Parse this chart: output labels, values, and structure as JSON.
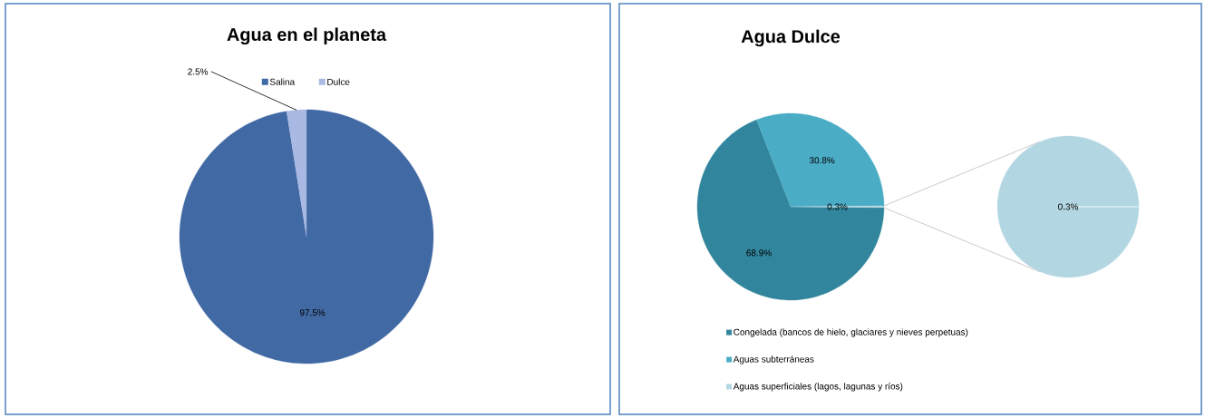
{
  "chart_data": [
    {
      "type": "pie",
      "title": "Agua en el planeta",
      "categories": [
        "Salina",
        "Dulce"
      ],
      "values": [
        97.5,
        2.5
      ],
      "colors": [
        "#4169a4",
        "#a9b9e3"
      ],
      "value_labels": [
        "97.5%",
        "2.5%"
      ],
      "legend": "top"
    },
    {
      "type": "pie",
      "title": "Agua Dulce",
      "categories": [
        "Congelada (bancos de hielo, glaciares y nieves perpetuas)",
        "Aguas subterráneas",
        "Aguas superficiales (lagos, lagunas y ríos)"
      ],
      "values": [
        68.9,
        30.8,
        0.3
      ],
      "colors": [
        "#31859c",
        "#4bacc6",
        "#b3d7e2"
      ],
      "value_labels": [
        "68.9%",
        "30.8%",
        "0.3%"
      ],
      "legend": "bottom"
    },
    {
      "type": "pie",
      "categories": [
        null
      ],
      "values": [
        0.3
      ],
      "colors": [
        "#b3d7e2"
      ],
      "value_labels": [
        "0.3%"
      ]
    }
  ]
}
